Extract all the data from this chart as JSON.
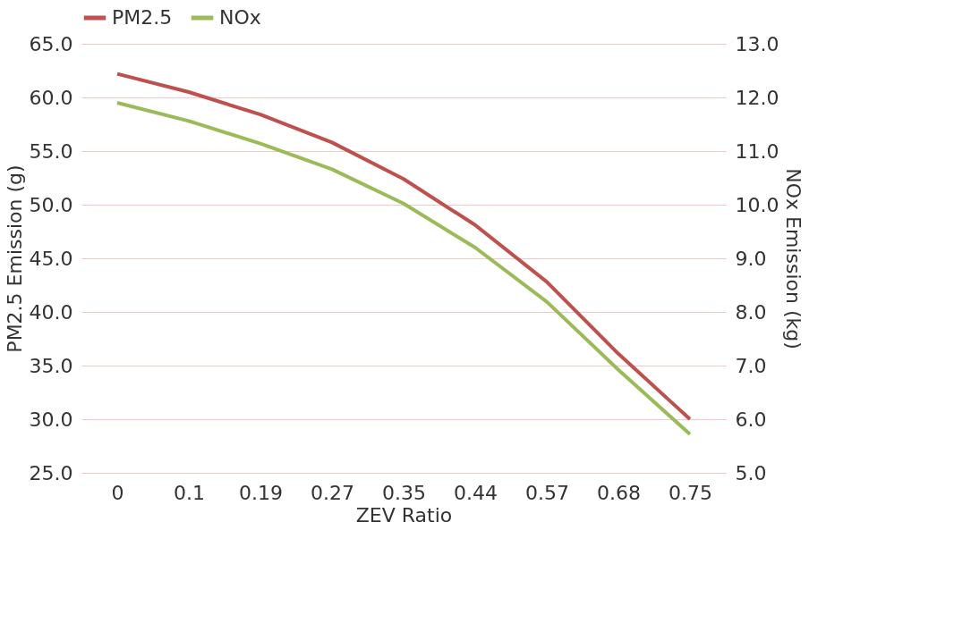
{
  "chart_data": {
    "type": "line",
    "xlabel": "ZEV Ratio",
    "ylabel": "PM2.5 Emission (g)",
    "y2label": "NOx Emission (kg)",
    "categories": [
      "0",
      "0.1",
      "0.19",
      "0.27",
      "0.35",
      "0.44",
      "0.57",
      "0.68",
      "0.75"
    ],
    "series": [
      {
        "name": "PM2.5",
        "color": "#c0504d",
        "values": [
          62.2,
          60.5,
          58.4,
          55.8,
          52.4,
          48.1,
          42.8,
          36.1,
          30.0
        ]
      },
      {
        "name": "NOx",
        "color": "#9bbb59",
        "axis": "y2",
        "values": [
          11.9,
          11.56,
          11.14,
          10.66,
          10.02,
          9.2,
          8.19,
          6.92,
          5.72
        ]
      }
    ],
    "ylim": [
      25,
      65
    ],
    "yticks": [
      {
        "value": 25,
        "label": "25.0"
      },
      {
        "value": 30,
        "label": "30.0"
      },
      {
        "value": 35,
        "label": "35.0"
      },
      {
        "value": 40,
        "label": "40.0"
      },
      {
        "value": 45,
        "label": "45.0"
      },
      {
        "value": 50,
        "label": "50.0"
      },
      {
        "value": 55,
        "label": "55.0"
      },
      {
        "value": 60,
        "label": "60.0"
      },
      {
        "value": 65,
        "label": "65.0"
      }
    ],
    "y2lim": [
      5,
      13
    ],
    "y2ticks": [
      {
        "value": 5,
        "label": "5.0"
      },
      {
        "value": 6,
        "label": "6.0"
      },
      {
        "value": 7,
        "label": "7.0"
      },
      {
        "value": 8,
        "label": "8.0"
      },
      {
        "value": 9,
        "label": "9.0"
      },
      {
        "value": 10,
        "label": "10.0"
      },
      {
        "value": 11,
        "label": "11.0"
      },
      {
        "value": 12,
        "label": "12.0"
      },
      {
        "value": 13,
        "label": "13.0"
      }
    ],
    "grid": "y",
    "legend": "top",
    "line_style": "solid",
    "marker": "none"
  }
}
